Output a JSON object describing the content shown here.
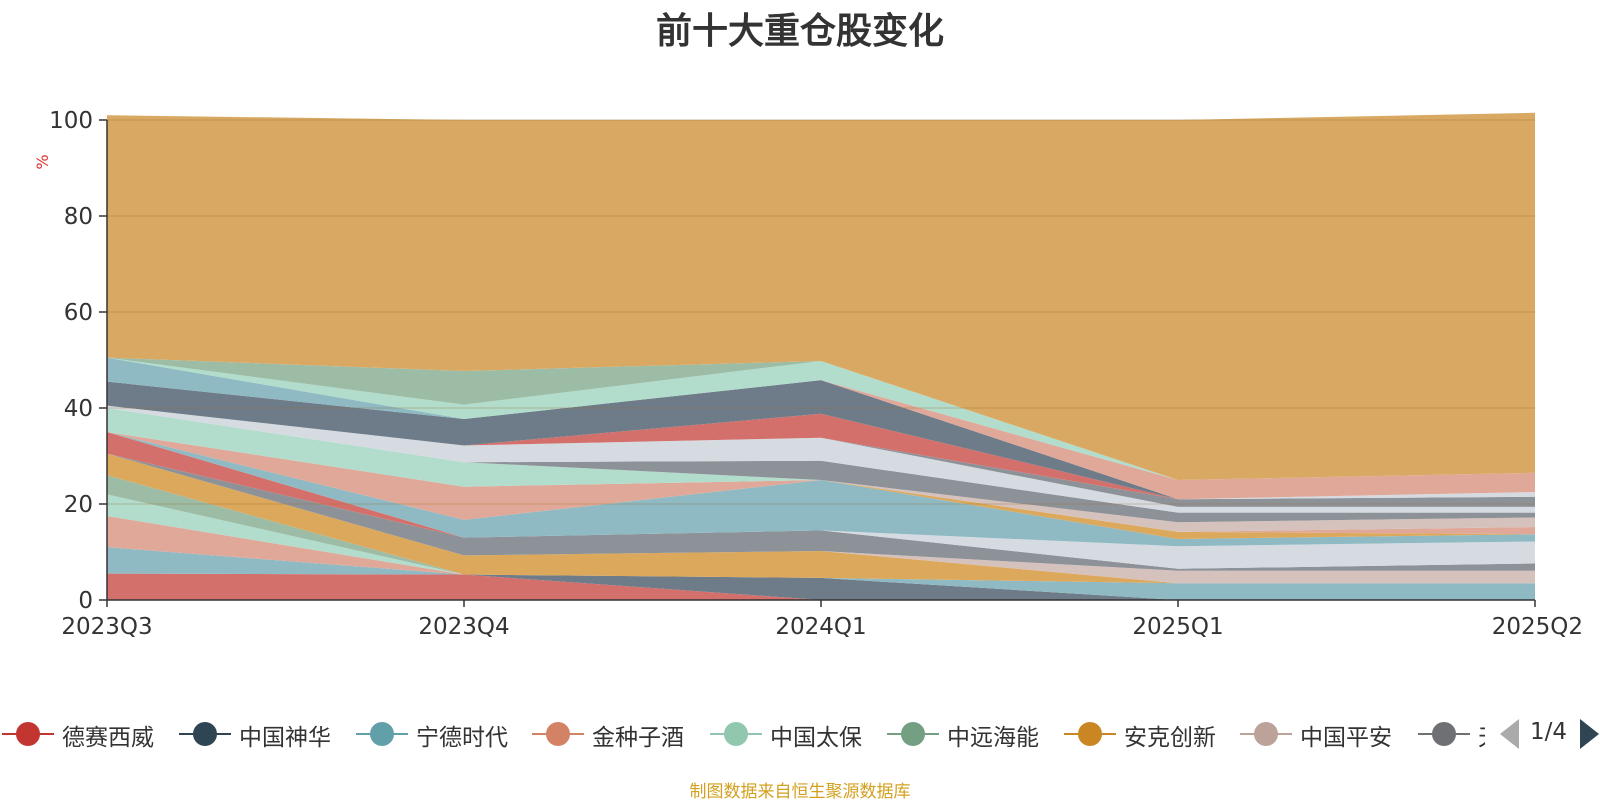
{
  "title": "前十大重仓股变化",
  "source_note": "制图数据来自恒生聚源数据库",
  "legend": {
    "page": "1/4",
    "items": [
      {
        "name": "德赛西威",
        "color": "#c23531"
      },
      {
        "name": "中国神华",
        "color": "#2f4554"
      },
      {
        "name": "宁德时代",
        "color": "#61a0a8"
      },
      {
        "name": "金种子酒",
        "color": "#d48265"
      },
      {
        "name": "中国太保",
        "color": "#91c7ae"
      },
      {
        "name": "中远海能",
        "color": "#749f83"
      },
      {
        "name": "安克创新",
        "color": "#ca8622"
      },
      {
        "name": "中国平安",
        "color": "#bda29a"
      },
      {
        "name": "天",
        "color": "#6e7074"
      }
    ]
  },
  "chart_data": {
    "type": "area",
    "stacked": true,
    "categories": [
      "2023Q3",
      "2023Q4",
      "2024Q1",
      "2025Q1",
      "2025Q2"
    ],
    "ylabel": "%",
    "ylim": [
      0,
      100
    ],
    "yticks": [
      0,
      20,
      40,
      60,
      80,
      100
    ],
    "grid": true,
    "bands": [
      {
        "color": "#d4706c",
        "values": [
          5.5,
          5.3,
          0.0,
          0.0,
          0.0
        ]
      },
      {
        "color": "#6e7b88",
        "values": [
          0.0,
          0.0,
          4.6,
          0.0,
          0.0
        ]
      },
      {
        "color": "#8fbac4",
        "values": [
          5.5,
          0.0,
          0.0,
          3.5,
          3.5
        ]
      },
      {
        "color": "#e0a898",
        "values": [
          6.5,
          0.0,
          0.0,
          0.0,
          0.0
        ]
      },
      {
        "color": "#b2dccb",
        "values": [
          4.5,
          0.0,
          0.0,
          0.0,
          0.0
        ]
      },
      {
        "color": "#9dbca6",
        "values": [
          4.0,
          0.0,
          0.0,
          0.0,
          0.0
        ]
      },
      {
        "color": "#dca85c",
        "values": [
          4.5,
          4.0,
          5.6,
          0.0,
          0.0
        ]
      },
      {
        "color": "#d6c2bc",
        "values": [
          0.0,
          0.0,
          0.0,
          2.6,
          2.6
        ]
      },
      {
        "color": "#8d9298",
        "values": [
          0.0,
          3.7,
          4.3,
          0.4,
          1.5
        ]
      },
      {
        "color": "#d4706c",
        "values": [
          4.5,
          0.0,
          0.0,
          0.0,
          0.0
        ]
      },
      {
        "color": "#d6dbe2",
        "values": [
          0.0,
          0.0,
          0.0,
          4.7,
          4.6
        ]
      },
      {
        "color": "#8fbac4",
        "values": [
          0.0,
          3.7,
          10.5,
          1.5,
          1.5
        ]
      },
      {
        "color": "#e0a898",
        "values": [
          0.0,
          6.9,
          0.0,
          0.0,
          0.0
        ]
      },
      {
        "color": "#b2dccb",
        "values": [
          5.0,
          5.1,
          0.0,
          0.0,
          0.0
        ]
      },
      {
        "color": "#dca85c",
        "values": [
          0.0,
          0.0,
          0.0,
          1.5,
          0.0
        ]
      },
      {
        "color": "#e0a898",
        "values": [
          0.0,
          0.0,
          0.0,
          0.0,
          1.5
        ]
      },
      {
        "color": "#d6c2bc",
        "values": [
          0.0,
          0.0,
          0.0,
          2.0,
          2.0
        ]
      },
      {
        "color": "#8d9298",
        "values": [
          0.0,
          0.0,
          4.0,
          2.0,
          1.0
        ]
      },
      {
        "color": "#d6dbe2",
        "values": [
          0.5,
          3.5,
          4.8,
          1.2,
          1.2
        ]
      },
      {
        "color": "#8d9298",
        "values": [
          0.0,
          0.0,
          0.0,
          1.6,
          2.1
        ]
      },
      {
        "color": "#d4706c",
        "values": [
          0.0,
          0.0,
          5.0,
          0.0,
          0.0
        ]
      },
      {
        "color": "#6e7b88",
        "values": [
          5.0,
          5.5,
          7.0,
          0.0,
          0.0
        ]
      },
      {
        "color": "#8fbac4",
        "values": [
          5.0,
          0.0,
          0.0,
          0.0,
          0.0
        ]
      },
      {
        "color": "#d6dbe2",
        "values": [
          0.0,
          0.0,
          0.0,
          0.0,
          1.0
        ]
      },
      {
        "color": "#e0a898",
        "values": [
          0.0,
          0.0,
          0.0,
          4.0,
          4.0
        ]
      },
      {
        "color": "#b2dccb",
        "values": [
          0.0,
          3.0,
          4.0,
          0.0,
          0.0
        ]
      },
      {
        "color": "#9dbca6",
        "values": [
          0.0,
          7.0,
          0.0,
          0.0,
          0.0
        ]
      },
      {
        "color": "#d9a963",
        "values": [
          50.5,
          52.3,
          50.2,
          75.0,
          75.0
        ]
      }
    ]
  }
}
